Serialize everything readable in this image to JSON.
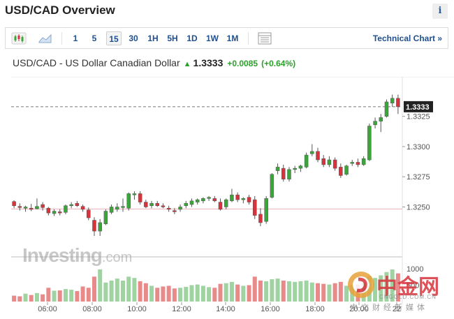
{
  "header": {
    "title": "USD/CAD Overview",
    "info_label": "i"
  },
  "toolbar": {
    "chart_types": [
      {
        "icon": "candlestick-icon"
      },
      {
        "icon": "area-chart-icon"
      }
    ],
    "intervals": [
      "1",
      "5",
      "15",
      "30",
      "1H",
      "5H",
      "1D",
      "1W",
      "1M"
    ],
    "active_interval": "15",
    "settings_icon": "chart-settings-icon",
    "technical_link": "Technical Chart »"
  },
  "quote": {
    "pair": "USD/CAD - US Dollar Canadian Dollar",
    "direction": "up",
    "price": "1.3333",
    "change": "+0.0085",
    "change_pct": "(+0.64%)"
  },
  "watermark": {
    "brand": "Investing",
    "suffix": ".com"
  },
  "overlay_logo": {
    "text": "中金网",
    "domain": "CNGOLD.COM.CN",
    "tagline": "中文财经新媒体"
  },
  "colors": {
    "up": "#3aa63a",
    "down": "#d8333c",
    "up_volume": "#9fd3a1",
    "down_volume": "#e88a8a",
    "link": "#1f4f8f"
  },
  "chart_data": {
    "type": "candlestick",
    "y_ticks": [
      "1.3325",
      "1.3300",
      "1.3275",
      "1.3250"
    ],
    "y_tick_values": [
      1.3325,
      1.33,
      1.3275,
      1.325
    ],
    "ylim": [
      1.3226,
      1.3352
    ],
    "x_ticks": [
      "06:00",
      "08:00",
      "10:00",
      "12:00",
      "14:00",
      "16:00",
      "18:00",
      "20:00",
      "22"
    ],
    "last_price_label": "1.3333",
    "last_price": 1.3333,
    "volume_axis_labels": [
      "1000",
      "500"
    ],
    "volume_axis_values": [
      1000,
      500
    ],
    "volume_max": 1150,
    "candles": [
      [
        1.32545,
        1.32555,
        1.3249,
        1.3251
      ],
      [
        1.32505,
        1.3253,
        1.3247,
        1.32495
      ],
      [
        1.3249,
        1.3251,
        1.3246,
        1.325
      ],
      [
        1.3249,
        1.32525,
        1.32465,
        1.3248
      ],
      [
        1.32485,
        1.3257,
        1.3248,
        1.32505
      ],
      [
        1.3252,
        1.3254,
        1.3247,
        1.32495
      ],
      [
        1.3249,
        1.325,
        1.3243,
        1.3245
      ],
      [
        1.32445,
        1.3248,
        1.32425,
        1.32465
      ],
      [
        1.3246,
        1.3248,
        1.3243,
        1.3245
      ],
      [
        1.32455,
        1.3252,
        1.3244,
        1.3251
      ],
      [
        1.3251,
        1.3254,
        1.3249,
        1.3252
      ],
      [
        1.3253,
        1.3255,
        1.325,
        1.3251
      ],
      [
        1.32505,
        1.3252,
        1.3246,
        1.3248
      ],
      [
        1.32475,
        1.32495,
        1.3239,
        1.3241
      ],
      [
        1.3239,
        1.32415,
        1.3226,
        1.323
      ],
      [
        1.323,
        1.324,
        1.3226,
        1.3237
      ],
      [
        1.3236,
        1.3248,
        1.3235,
        1.32465
      ],
      [
        1.32455,
        1.3252,
        1.3244,
        1.325
      ],
      [
        1.3248,
        1.3253,
        1.3246,
        1.325
      ],
      [
        1.32495,
        1.3257,
        1.3246,
        1.32505
      ],
      [
        1.3249,
        1.3262,
        1.3247,
        1.3261
      ],
      [
        1.326,
        1.3263,
        1.3256,
        1.3261
      ],
      [
        1.3261,
        1.3263,
        1.3252,
        1.3254
      ],
      [
        1.3254,
        1.3256,
        1.3249,
        1.325
      ],
      [
        1.3251,
        1.3255,
        1.3249,
        1.3253
      ],
      [
        1.3253,
        1.3255,
        1.325,
        1.3251
      ],
      [
        1.3251,
        1.3253,
        1.3249,
        1.325
      ],
      [
        1.3249,
        1.3251,
        1.3246,
        1.3248
      ],
      [
        1.3247,
        1.3249,
        1.3244,
        1.3246
      ],
      [
        1.3248,
        1.3252,
        1.3246,
        1.325
      ],
      [
        1.3251,
        1.3255,
        1.3249,
        1.3253
      ],
      [
        1.3252,
        1.3257,
        1.325,
        1.3255
      ],
      [
        1.3254,
        1.3257,
        1.3252,
        1.3256
      ],
      [
        1.3255,
        1.3258,
        1.3253,
        1.3257
      ],
      [
        1.3257,
        1.3259,
        1.3255,
        1.3258
      ],
      [
        1.3257,
        1.3259,
        1.3254,
        1.3255
      ],
      [
        1.3254,
        1.3257,
        1.3247,
        1.3248
      ],
      [
        1.325,
        1.3257,
        1.3248,
        1.3256
      ],
      [
        1.3255,
        1.3265,
        1.3254,
        1.326
      ],
      [
        1.326,
        1.3262,
        1.3254,
        1.3256
      ],
      [
        1.3256,
        1.3258,
        1.3253,
        1.3257
      ],
      [
        1.3258,
        1.326,
        1.3252,
        1.3254
      ],
      [
        1.3256,
        1.3259,
        1.324,
        1.3243
      ],
      [
        1.3244,
        1.3249,
        1.3234,
        1.3237
      ],
      [
        1.3238,
        1.3259,
        1.3236,
        1.3257
      ],
      [
        1.3258,
        1.3278,
        1.3257,
        1.3277
      ],
      [
        1.328,
        1.3286,
        1.3277,
        1.3283
      ],
      [
        1.3282,
        1.3285,
        1.3271,
        1.3273
      ],
      [
        1.3273,
        1.3283,
        1.3271,
        1.3281
      ],
      [
        1.3281,
        1.3284,
        1.3278,
        1.3282
      ],
      [
        1.3282,
        1.3285,
        1.3279,
        1.3284
      ],
      [
        1.3283,
        1.3295,
        1.3282,
        1.3293
      ],
      [
        1.3294,
        1.3302,
        1.3292,
        1.3296
      ],
      [
        1.3296,
        1.3299,
        1.3287,
        1.3289
      ],
      [
        1.329,
        1.3293,
        1.3283,
        1.3285
      ],
      [
        1.3285,
        1.3292,
        1.3283,
        1.3289
      ],
      [
        1.3289,
        1.3291,
        1.328,
        1.3282
      ],
      [
        1.3283,
        1.3286,
        1.3274,
        1.3276
      ],
      [
        1.3277,
        1.3285,
        1.3276,
        1.3284
      ],
      [
        1.3286,
        1.3289,
        1.3284,
        1.3287
      ],
      [
        1.3287,
        1.329,
        1.3283,
        1.3285
      ],
      [
        1.3285,
        1.3292,
        1.3284,
        1.329
      ],
      [
        1.3289,
        1.3319,
        1.3288,
        1.3317
      ],
      [
        1.3318,
        1.3324,
        1.3315,
        1.3321
      ],
      [
        1.3321,
        1.3327,
        1.3312,
        1.3324
      ],
      [
        1.3325,
        1.3339,
        1.3324,
        1.3337
      ],
      [
        1.3336,
        1.3343,
        1.3333,
        1.334
      ],
      [
        1.334,
        1.3343,
        1.3327,
        1.3333
      ]
    ],
    "volumes": [
      180,
      160,
      240,
      200,
      260,
      220,
      420,
      330,
      340,
      380,
      360,
      320,
      460,
      420,
      760,
      980,
      580,
      640,
      700,
      640,
      760,
      720,
      620,
      560,
      480,
      420,
      460,
      480,
      400,
      420,
      450,
      500,
      520,
      480,
      440,
      420,
      540,
      560,
      600,
      520,
      480,
      500,
      760,
      640,
      620,
      680,
      700,
      640,
      620,
      600,
      620,
      640,
      580,
      560,
      540,
      520,
      560,
      600,
      480,
      500,
      520,
      580,
      780,
      720,
      800,
      900,
      980,
      860
    ]
  }
}
